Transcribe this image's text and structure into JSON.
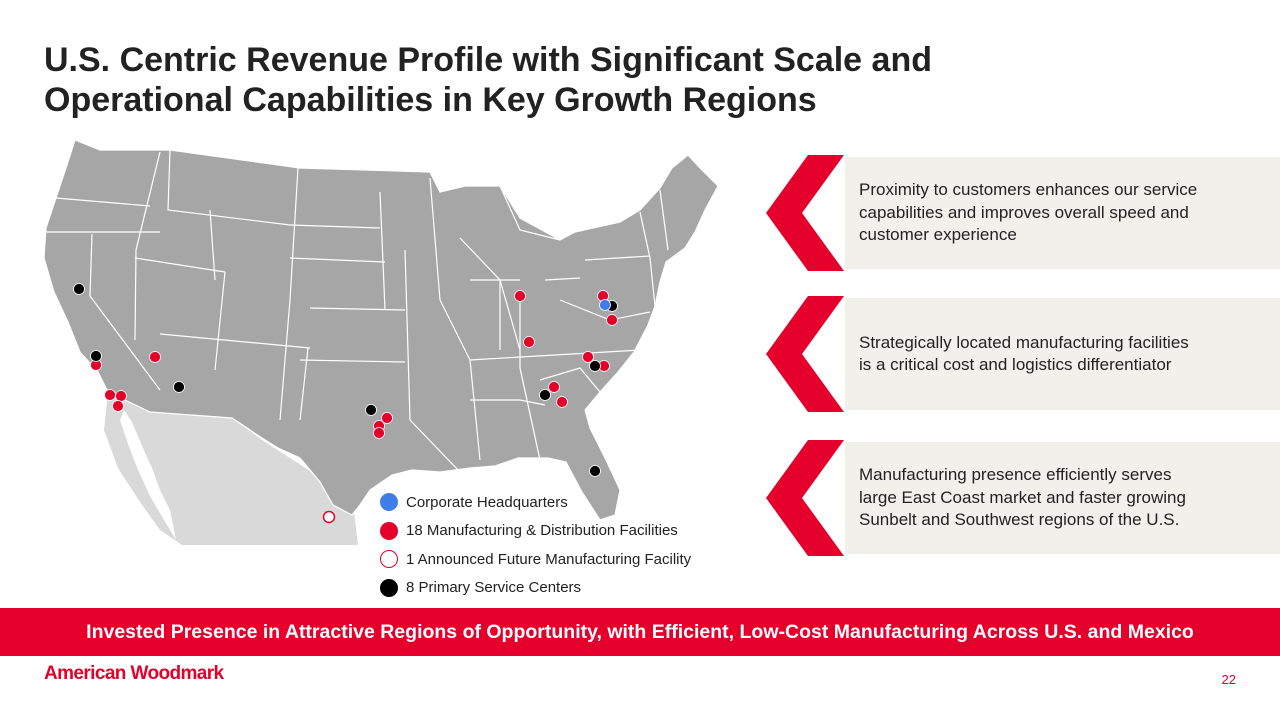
{
  "title": {
    "line1": "U.S. Centric Revenue Profile with Significant Scale and",
    "line2": "Operational Capabilities in Key Growth Regions"
  },
  "colors": {
    "accent": "#e4002b",
    "headquarters": "#3f7ee8",
    "service_center": "#000000",
    "us_land": "#a6a6a6",
    "mexico_land": "#d9d9d9",
    "panel_bg": "#f2f0ea"
  },
  "legend": [
    {
      "marker": "headquarters",
      "label": "Corporate Headquarters"
    },
    {
      "marker": "manufacturing",
      "label": "18 Manufacturing & Distribution Facilities"
    },
    {
      "marker": "future-facility",
      "label": "1 Announced Future Manufacturing Facility"
    },
    {
      "marker": "service-center",
      "label": "8 Primary Service Centers"
    }
  ],
  "points": [
    {
      "text": "Proximity to customers enhances our service capabilities and improves overall speed and customer experience"
    },
    {
      "text": "Strategically located manufacturing facilities is a critical cost and logistics differentiator"
    },
    {
      "text": "Manufacturing presence efficiently serves large East Coast market and faster growing Sunbelt and Southwest regions of the U.S."
    }
  ],
  "banner": {
    "text": "Invested Presence in Attractive Regions of Opportunity, with Efficient, Low-Cost Manufacturing Across U.S. and Mexico"
  },
  "logo": {
    "text": "American Woodmark"
  },
  "page_number": "22"
}
